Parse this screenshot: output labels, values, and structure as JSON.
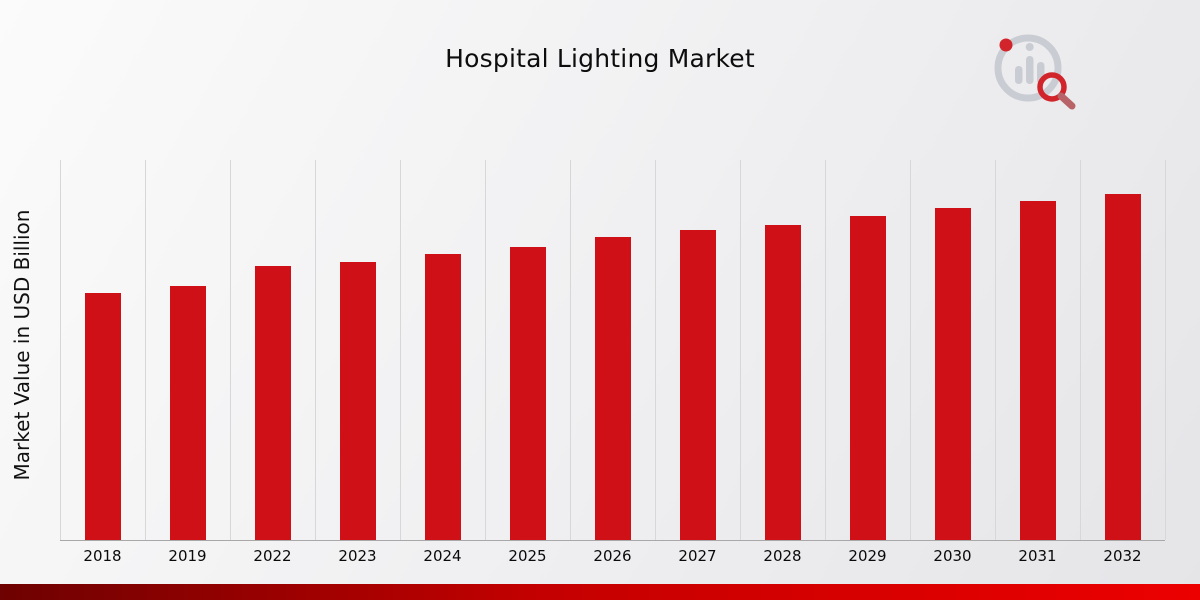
{
  "title": "Hospital Lighting Market",
  "ylabel": "Market Value in USD Billion",
  "logo_name": "market-research-chart-magnifier-logo",
  "colors": {
    "bar": "#cf1016",
    "gridline": "#d7d7da",
    "baseline": "#a8a8a8",
    "background_start": "#fbfbfb",
    "background_end": "#e5e5e8",
    "bottom_strip_left": "#6e0101",
    "bottom_strip_mid": "#c40000",
    "bottom_strip_right": "#ec0000"
  },
  "chart_data": {
    "type": "bar",
    "title": "Hospital Lighting Market",
    "xlabel": "",
    "ylabel": "Market Value in USD Billion",
    "categories": [
      "2018",
      "2019",
      "2022",
      "2023",
      "2024",
      "2025",
      "2026",
      "2027",
      "2028",
      "2029",
      "2030",
      "2031",
      "2032"
    ],
    "values": [
      1.02,
      1.05,
      1.13,
      1.15,
      1.18,
      1.21,
      1.25,
      1.28,
      1.3,
      1.34,
      1.37,
      1.4,
      1.43
    ],
    "data_labels": {
      "2023": "1.15",
      "2024": "1.18",
      "2032": "1.43"
    },
    "ylim": [
      0,
      1.57
    ],
    "grid": "vertical-between-categories",
    "legend": "none",
    "bar_color": "#cf1016"
  }
}
